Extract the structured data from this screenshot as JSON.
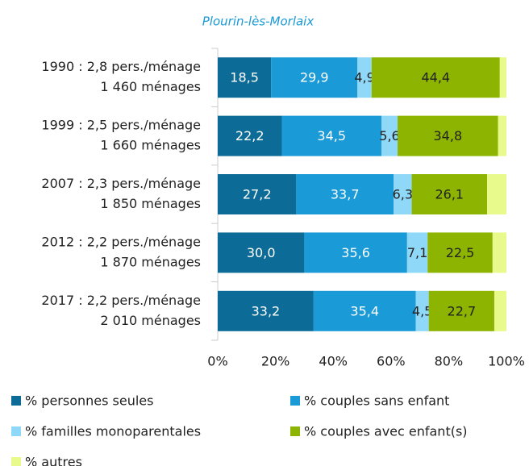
{
  "chart_data": {
    "type": "stacked_barh",
    "title": "Plourin-lès-Morlaix",
    "categories": [
      [
        "1990 : 2,8 pers./ménage",
        "1 460 ménages"
      ],
      [
        "1999 : 2,5 pers./ménage",
        "1 660 ménages"
      ],
      [
        "2007 : 2,3 pers./ménage",
        "1 850 ménages"
      ],
      [
        "2012 : 2,2 pers./ménage",
        "1 870 ménages"
      ],
      [
        "2017 : 2,2 pers./ménage",
        "2 010 ménages"
      ]
    ],
    "series": [
      {
        "name": "% personnes seules",
        "color": "#0d6b97",
        "values": [
          18.5,
          22.2,
          27.2,
          30.0,
          33.2
        ],
        "value_labels": [
          "18,5",
          "22,2",
          "27,2",
          "30,0",
          "33,2"
        ]
      },
      {
        "name": "% couples sans enfant",
        "color": "#1a9ad6",
        "values": [
          29.9,
          34.5,
          33.7,
          35.6,
          35.4
        ],
        "value_labels": [
          "29,9",
          "34,5",
          "33,7",
          "35,6",
          "35,4"
        ]
      },
      {
        "name": "% familles monoparentales",
        "color": "#8fd8f8",
        "values": [
          4.9,
          5.6,
          6.3,
          7.1,
          4.5
        ],
        "value_labels": [
          "4,9",
          "5,6",
          "6,3",
          "7,1",
          "4,5"
        ]
      },
      {
        "name": "% couples avec enfant(s)",
        "color": "#8cb400",
        "values": [
          44.4,
          34.8,
          26.1,
          22.5,
          22.7
        ],
        "value_labels": [
          "44,4",
          "34,8",
          "26,1",
          "22,5",
          "22,7"
        ]
      },
      {
        "name": "% autres",
        "color": "#e8fa8c",
        "values": [
          2.3,
          2.9,
          6.7,
          4.8,
          4.2
        ]
      }
    ],
    "xlim": [
      0,
      100
    ],
    "xticks": [
      {
        "value": 0,
        "label": "0%"
      },
      {
        "value": 20,
        "label": "20%"
      },
      {
        "value": 40,
        "label": "40%"
      },
      {
        "value": 60,
        "label": "60%"
      },
      {
        "value": 80,
        "label": "80%"
      },
      {
        "value": 100,
        "label": "100%"
      }
    ],
    "grid": false
  }
}
